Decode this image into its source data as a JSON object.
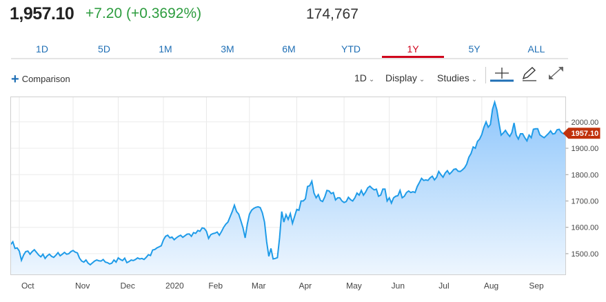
{
  "quote": {
    "price": "1,957.10",
    "change": "+7.20 (+0.3692%)",
    "volume": "174,767"
  },
  "tabs": [
    {
      "label": "1D",
      "active": false
    },
    {
      "label": "5D",
      "active": false
    },
    {
      "label": "1M",
      "active": false
    },
    {
      "label": "3M",
      "active": false
    },
    {
      "label": "6M",
      "active": false
    },
    {
      "label": "YTD",
      "active": false
    },
    {
      "label": "1Y",
      "active": true
    },
    {
      "label": "5Y",
      "active": false
    },
    {
      "label": "ALL",
      "active": false
    }
  ],
  "toolbar": {
    "comparison_label": "Comparison",
    "interval_label": "1D",
    "display_label": "Display",
    "studies_label": "Studies",
    "icons": [
      "crosshair-icon",
      "pencil-icon",
      "expand-icon"
    ]
  },
  "colors": {
    "accent": "#1f6fb5",
    "positive": "#2c9c3e",
    "active_tab": "#d0021b",
    "line": "#1e9be8",
    "area_top": "#8ec6fb",
    "area_bottom": "#eef6fe",
    "last_price_badge": "#c0310c"
  },
  "chart_data": {
    "type": "area",
    "title": "",
    "xlabel": "",
    "ylabel": "",
    "ylim": [
      1420,
      2095
    ],
    "y_ticks": [
      "1500.00",
      "1600.00",
      "1700.00",
      "1800.00",
      "2000.00"
    ],
    "y_tick_values": [
      1500,
      1600,
      1700,
      1800,
      2000
    ],
    "y_tick_1900_label": "1900.00",
    "last_price_label": "1957.10",
    "last_price": 1957.1,
    "x_month_labels": [
      "Oct",
      "Nov",
      "Dec",
      "2020",
      "Feb",
      "Mar",
      "Apr",
      "May",
      "Jun",
      "Jul",
      "Aug",
      "Sep"
    ],
    "x_month_index": [
      4,
      29,
      50,
      71,
      91,
      111,
      133,
      155,
      176,
      198,
      219,
      240
    ],
    "grid": true,
    "values": [
      1535,
      1545,
      1520,
      1522,
      1510,
      1475,
      1495,
      1508,
      1510,
      1498,
      1508,
      1515,
      1505,
      1495,
      1488,
      1498,
      1482,
      1492,
      1498,
      1490,
      1486,
      1494,
      1504,
      1492,
      1498,
      1505,
      1498,
      1500,
      1508,
      1512,
      1506,
      1503,
      1483,
      1472,
      1468,
      1476,
      1464,
      1458,
      1465,
      1472,
      1476,
      1473,
      1472,
      1478,
      1468,
      1466,
      1461,
      1464,
      1476,
      1468,
      1484,
      1478,
      1474,
      1483,
      1466,
      1470,
      1476,
      1474,
      1478,
      1484,
      1480,
      1482,
      1478,
      1486,
      1496,
      1493,
      1514,
      1516,
      1522,
      1526,
      1530,
      1552,
      1566,
      1570,
      1560,
      1563,
      1553,
      1560,
      1566,
      1570,
      1562,
      1568,
      1574,
      1575,
      1566,
      1580,
      1577,
      1588,
      1585,
      1598,
      1596,
      1585,
      1558,
      1572,
      1576,
      1578,
      1582,
      1570,
      1584,
      1600,
      1612,
      1620,
      1640,
      1660,
      1684,
      1660,
      1650,
      1625,
      1598,
      1560,
      1612,
      1650,
      1665,
      1672,
      1676,
      1678,
      1675,
      1655,
      1620,
      1545,
      1490,
      1520,
      1480,
      1482,
      1485,
      1560,
      1660,
      1620,
      1648,
      1630,
      1652,
      1615,
      1642,
      1668,
      1665,
      1700,
      1700,
      1708,
      1755,
      1758,
      1775,
      1730,
      1712,
      1724,
      1702,
      1698,
      1715,
      1740,
      1738,
      1728,
      1732,
      1704,
      1712,
      1712,
      1700,
      1694,
      1698,
      1714,
      1705,
      1700,
      1712,
      1730,
      1722,
      1740,
      1722,
      1734,
      1750,
      1756,
      1748,
      1742,
      1745,
      1718,
      1722,
      1745,
      1745,
      1700,
      1712,
      1692,
      1712,
      1718,
      1720,
      1740,
      1712,
      1718,
      1732,
      1738,
      1732,
      1735,
      1732,
      1755,
      1770,
      1786,
      1778,
      1780,
      1778,
      1788,
      1794,
      1780,
      1790,
      1812,
      1800,
      1790,
      1806,
      1815,
      1802,
      1810,
      1820,
      1822,
      1813,
      1812,
      1818,
      1826,
      1840,
      1866,
      1880,
      1905,
      1900,
      1926,
      1935,
      1952,
      1980,
      2000,
      1980,
      1990,
      2048,
      2075,
      2046,
      1995,
      1950,
      1958,
      1968,
      1955,
      1945,
      1960,
      1996,
      1950,
      1935,
      1955,
      1955,
      1940,
      1928,
      1950,
      1940,
      1972,
      1974,
      1974,
      1951,
      1945,
      1940,
      1948,
      1956,
      1966,
      1954,
      1956,
      1970,
      1972,
      1960,
      1955,
      1957.1
    ]
  }
}
